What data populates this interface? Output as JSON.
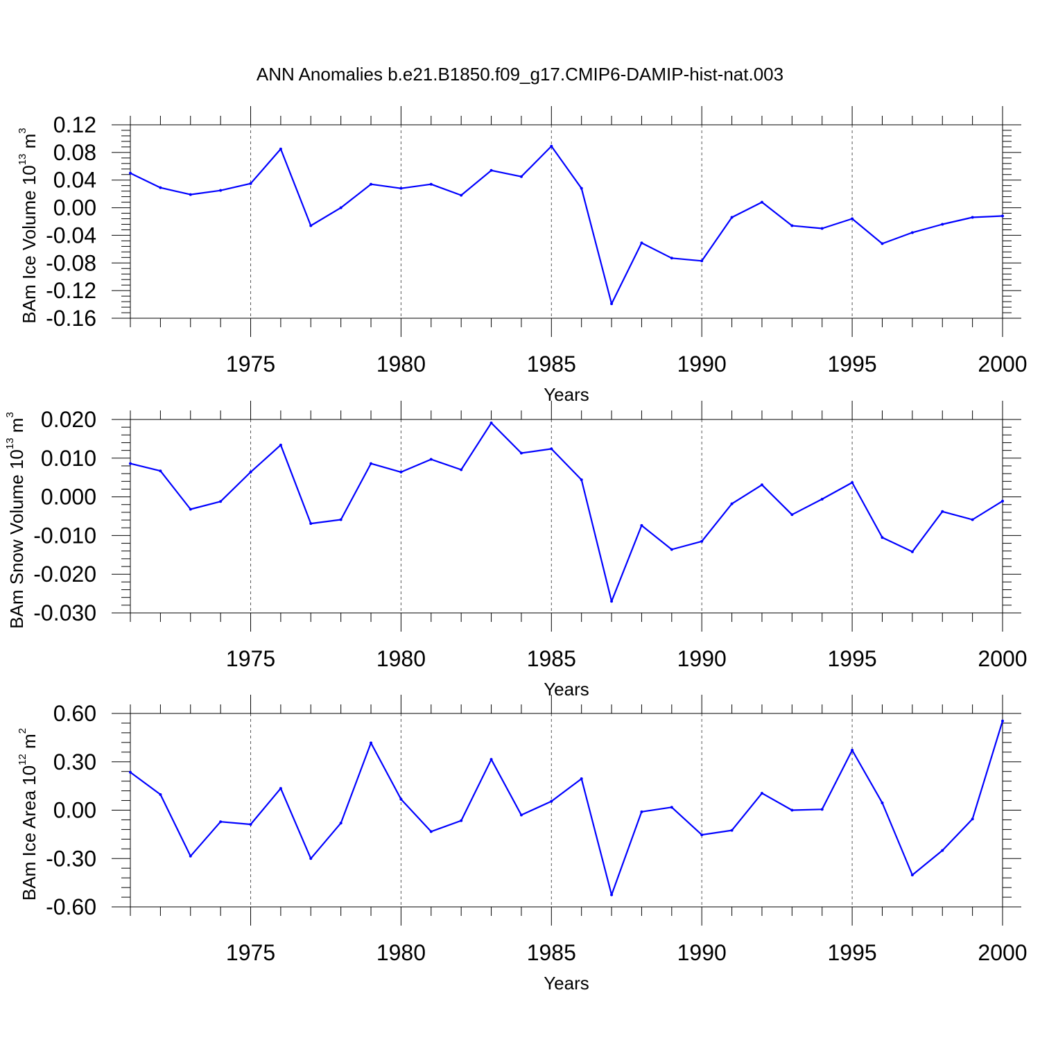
{
  "title": "ANN Anomalies b.e21.B1850.f09_g17.CMIP6-DAMIP-hist-nat.003",
  "chart_data": [
    {
      "type": "line",
      "title": "ANN Anomalies b.e21.B1850.f09_g17.CMIP6-DAMIP-hist-nat.003",
      "xlabel": "Years",
      "ylabel": {
        "prefix": "BAm Ice Volume 10",
        "exp": "13",
        "unit": " m",
        "unit_exp": "3"
      },
      "xlim": [
        1971,
        2000
      ],
      "ylim": [
        -0.16,
        0.12
      ],
      "x_ticks": [
        1975,
        1980,
        1985,
        1990,
        1995,
        2000
      ],
      "y_ticks": [
        "0.12",
        "0.08",
        "0.04",
        "0.00",
        "-0.04",
        "-0.08",
        "-0.12",
        "-0.16"
      ],
      "grid": "vertical dashed at major x ticks",
      "color": "#0000ff",
      "x": [
        1971,
        1972,
        1973,
        1974,
        1975,
        1976,
        1977,
        1978,
        1979,
        1980,
        1981,
        1982,
        1983,
        1984,
        1985,
        1986,
        1987,
        1988,
        1989,
        1990,
        1991,
        1992,
        1993,
        1994,
        1995,
        1996,
        1997,
        1998,
        1999,
        2000
      ],
      "values": [
        0.05,
        0.029,
        0.019,
        0.025,
        0.035,
        0.085,
        -0.026,
        0.0,
        0.034,
        0.028,
        0.034,
        0.018,
        0.054,
        0.045,
        0.089,
        0.028,
        -0.139,
        -0.051,
        -0.073,
        -0.077,
        -0.014,
        0.008,
        -0.026,
        -0.03,
        -0.016,
        -0.052,
        -0.036,
        -0.024,
        -0.014,
        -0.012
      ]
    },
    {
      "type": "line",
      "xlabel": "Years",
      "ylabel": {
        "prefix": "BAm Snow Volume 10",
        "exp": "13",
        "unit": " m",
        "unit_exp": "3"
      },
      "xlim": [
        1971,
        2000
      ],
      "ylim": [
        -0.03,
        0.02
      ],
      "x_ticks": [
        1975,
        1980,
        1985,
        1990,
        1995,
        2000
      ],
      "y_ticks": [
        "0.020",
        "0.010",
        "0.000",
        "-0.010",
        "-0.020",
        "-0.030"
      ],
      "grid": "vertical dashed at major x ticks",
      "color": "#0000ff",
      "x": [
        1971,
        1972,
        1973,
        1974,
        1975,
        1976,
        1977,
        1978,
        1979,
        1980,
        1981,
        1982,
        1983,
        1984,
        1985,
        1986,
        1987,
        1988,
        1989,
        1990,
        1991,
        1992,
        1993,
        1994,
        1995,
        1996,
        1997,
        1998,
        1999,
        2000
      ],
      "values": [
        0.0086,
        0.0067,
        -0.0032,
        -0.0012,
        0.0064,
        0.0134,
        -0.0069,
        -0.0059,
        0.0086,
        0.0064,
        0.0097,
        0.007,
        0.0191,
        0.0113,
        0.0124,
        0.0044,
        -0.027,
        -0.0074,
        -0.0136,
        -0.0115,
        -0.0018,
        0.0031,
        -0.0046,
        -0.0006,
        0.0037,
        -0.0105,
        -0.0142,
        -0.0038,
        -0.0059,
        -0.0011
      ]
    },
    {
      "type": "line",
      "xlabel": "Years",
      "ylabel": {
        "prefix": "BAm Ice Area 10",
        "exp": "12",
        "unit": " m",
        "unit_exp": "2"
      },
      "xlim": [
        1971,
        2000
      ],
      "ylim": [
        -0.6,
        0.6
      ],
      "x_ticks": [
        1975,
        1980,
        1985,
        1990,
        1995,
        2000
      ],
      "y_ticks": [
        "0.60",
        "0.30",
        "0.00",
        "-0.30",
        "-0.60"
      ],
      "grid": "vertical dashed at major x ticks",
      "color": "#0000ff",
      "x": [
        1971,
        1972,
        1973,
        1974,
        1975,
        1976,
        1977,
        1978,
        1979,
        1980,
        1981,
        1982,
        1983,
        1984,
        1985,
        1986,
        1987,
        1988,
        1989,
        1990,
        1991,
        1992,
        1993,
        1994,
        1995,
        1996,
        1997,
        1998,
        1999,
        2000
      ],
      "values": [
        0.235,
        0.097,
        -0.285,
        -0.072,
        -0.088,
        0.135,
        -0.3,
        -0.08,
        0.417,
        0.068,
        -0.133,
        -0.065,
        0.315,
        -0.03,
        0.055,
        0.195,
        -0.525,
        -0.01,
        0.018,
        -0.153,
        -0.125,
        0.105,
        0.0,
        0.005,
        0.372,
        0.045,
        -0.402,
        -0.25,
        -0.055,
        0.553
      ]
    }
  ]
}
